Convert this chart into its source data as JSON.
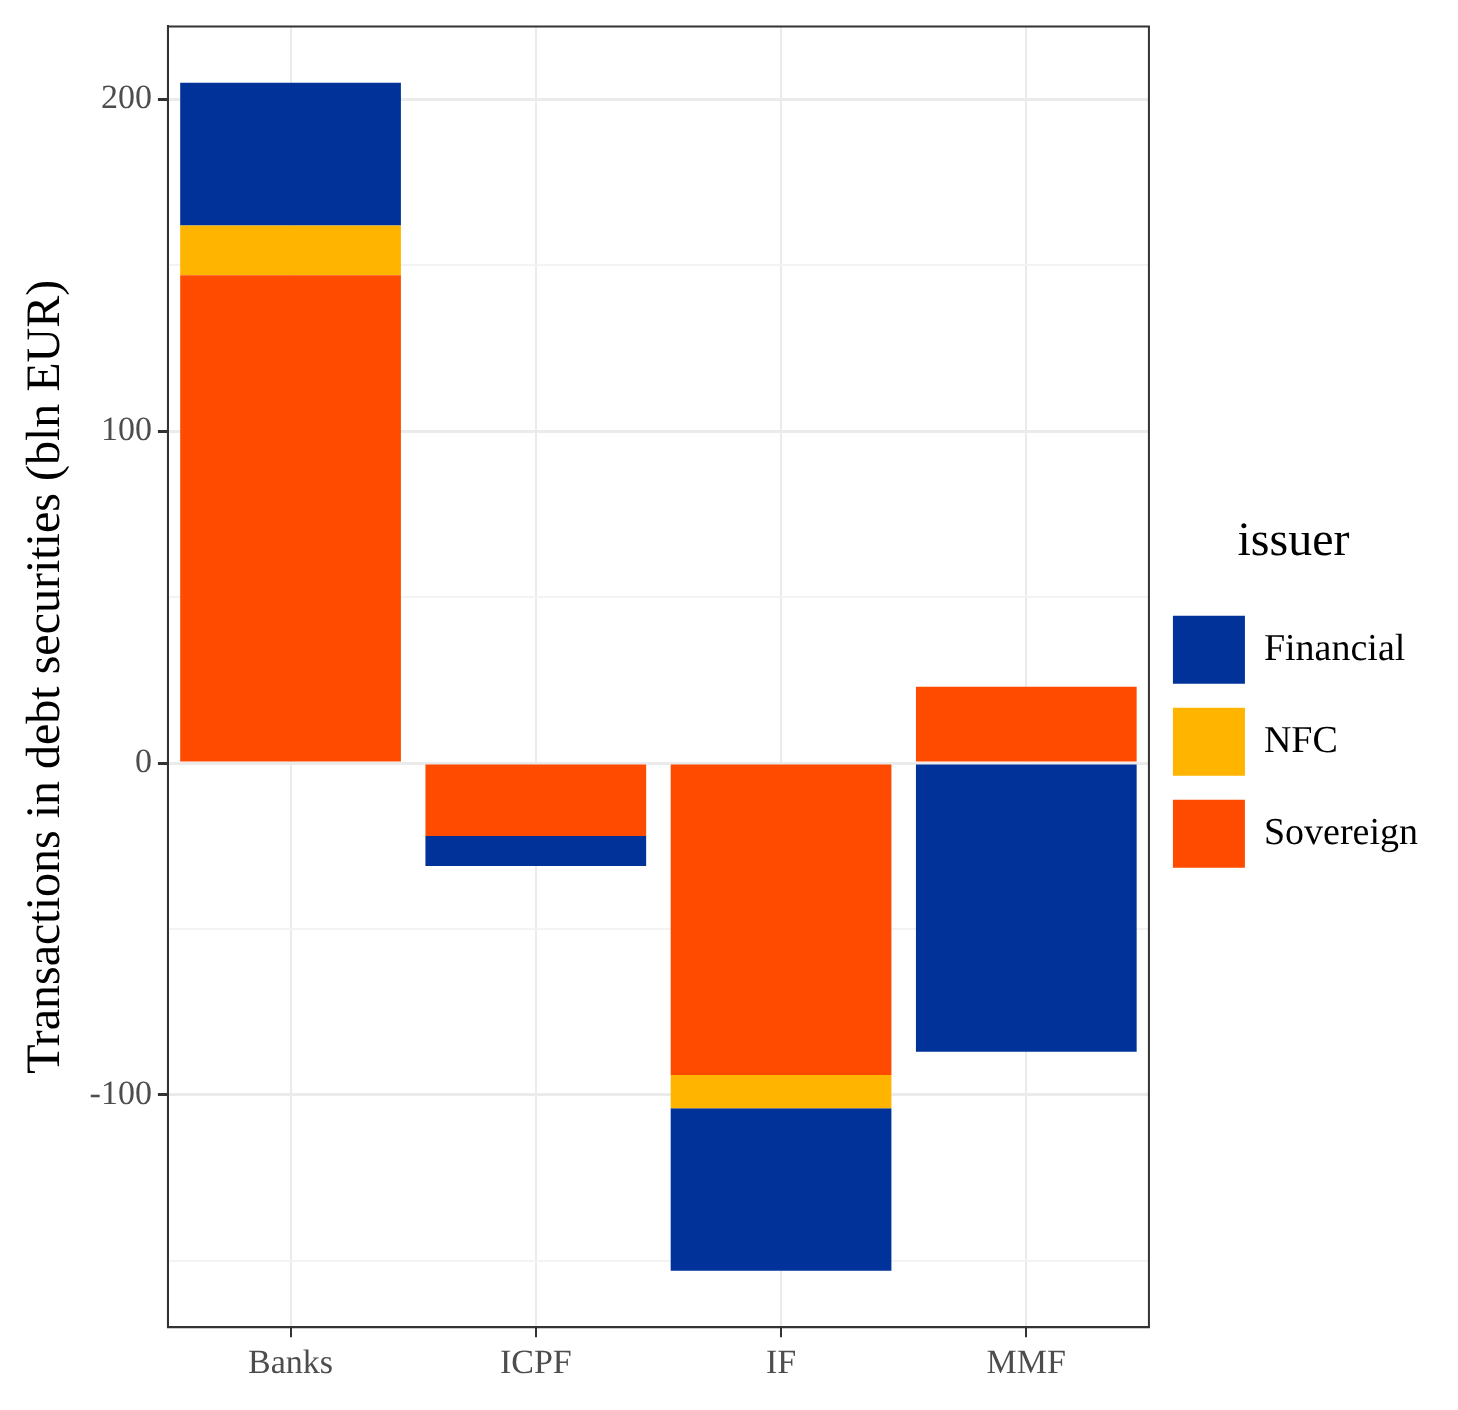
{
  "chart_data": {
    "type": "bar",
    "stacked": true,
    "ylabel": "Transactions in debt securities (bln EUR)",
    "legend_title": "issuer",
    "legend": "right",
    "grid": true,
    "categories": [
      "Banks",
      "ICPF",
      "IF",
      "MMF"
    ],
    "series": [
      {
        "name": "Sovereign",
        "color": "#ff4b00",
        "values": [
          147,
          -22,
          -94,
          23
        ]
      },
      {
        "name": "NFC",
        "color": "#ffb400",
        "values": [
          15,
          0,
          -10,
          0
        ]
      },
      {
        "name": "Financial",
        "color": "#003299",
        "values": [
          43,
          -9,
          -49,
          -87
        ]
      }
    ],
    "ylim": [
      -170,
      222
    ],
    "yticks": [
      {
        "value": -150,
        "label": null
      },
      -100,
      {
        "value": -50,
        "label": null
      },
      0,
      {
        "value": 50,
        "label": null
      },
      100,
      {
        "value": 150,
        "label": null
      },
      200
    ]
  }
}
